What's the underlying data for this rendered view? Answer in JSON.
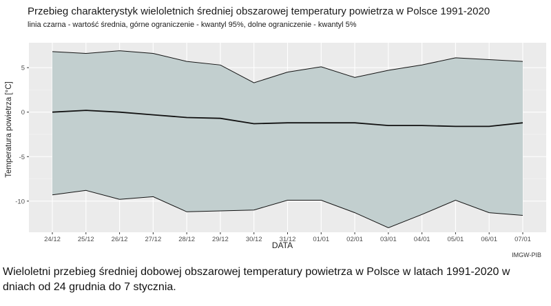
{
  "chart_data": {
    "type": "area",
    "title": "Przebieg charakterystyk wieloletnich średniej obszarowej temperatury powietrza w Polsce 1991-2020",
    "subtitle": "linia czarna - wartość średnia, górne ograniczenie - kwantyl 95%, dolne ograniczenie - kwantyl 5%",
    "xlabel": "DATA",
    "ylabel": "Temperatura powietrza [°C]",
    "categories": [
      "24/12",
      "25/12",
      "26/12",
      "27/12",
      "28/12",
      "29/12",
      "30/12",
      "31/12",
      "01/01",
      "02/01",
      "03/01",
      "04/01",
      "05/01",
      "06/01",
      "07/01"
    ],
    "ylim": [
      -13.5,
      7.8
    ],
    "yticks": [
      5,
      0,
      -5,
      -10
    ],
    "ytick_labels": [
      "5",
      "0",
      "-5",
      "-10"
    ],
    "grid": true,
    "band_color": "#c2cfcf",
    "panel_color": "#ebebeb",
    "series": [
      {
        "name": "kwantyl 95%",
        "values": [
          6.8,
          6.6,
          6.9,
          6.6,
          5.7,
          5.3,
          3.3,
          4.5,
          5.1,
          3.9,
          4.7,
          5.3,
          6.1,
          5.9,
          5.7
        ]
      },
      {
        "name": "wartość średnia",
        "values": [
          0.0,
          0.2,
          0.0,
          -0.3,
          -0.6,
          -0.7,
          -1.3,
          -1.2,
          -1.2,
          -1.2,
          -1.5,
          -1.5,
          -1.6,
          -1.6,
          -1.2
        ]
      },
      {
        "name": "kwantyl 5%",
        "values": [
          -9.3,
          -8.8,
          -9.8,
          -9.5,
          -11.2,
          -11.1,
          -11.0,
          -9.9,
          -9.9,
          -11.3,
          -13.0,
          -11.5,
          -9.9,
          -11.3,
          -11.6
        ]
      }
    ]
  },
  "source": "IMGW-PIB",
  "caption": "Wieloletni przebieg średniej dobowej obszarowej temperatury powietrza w Polsce w latach 1991-2020 w dniach od 24 grudnia do 7 stycznia."
}
